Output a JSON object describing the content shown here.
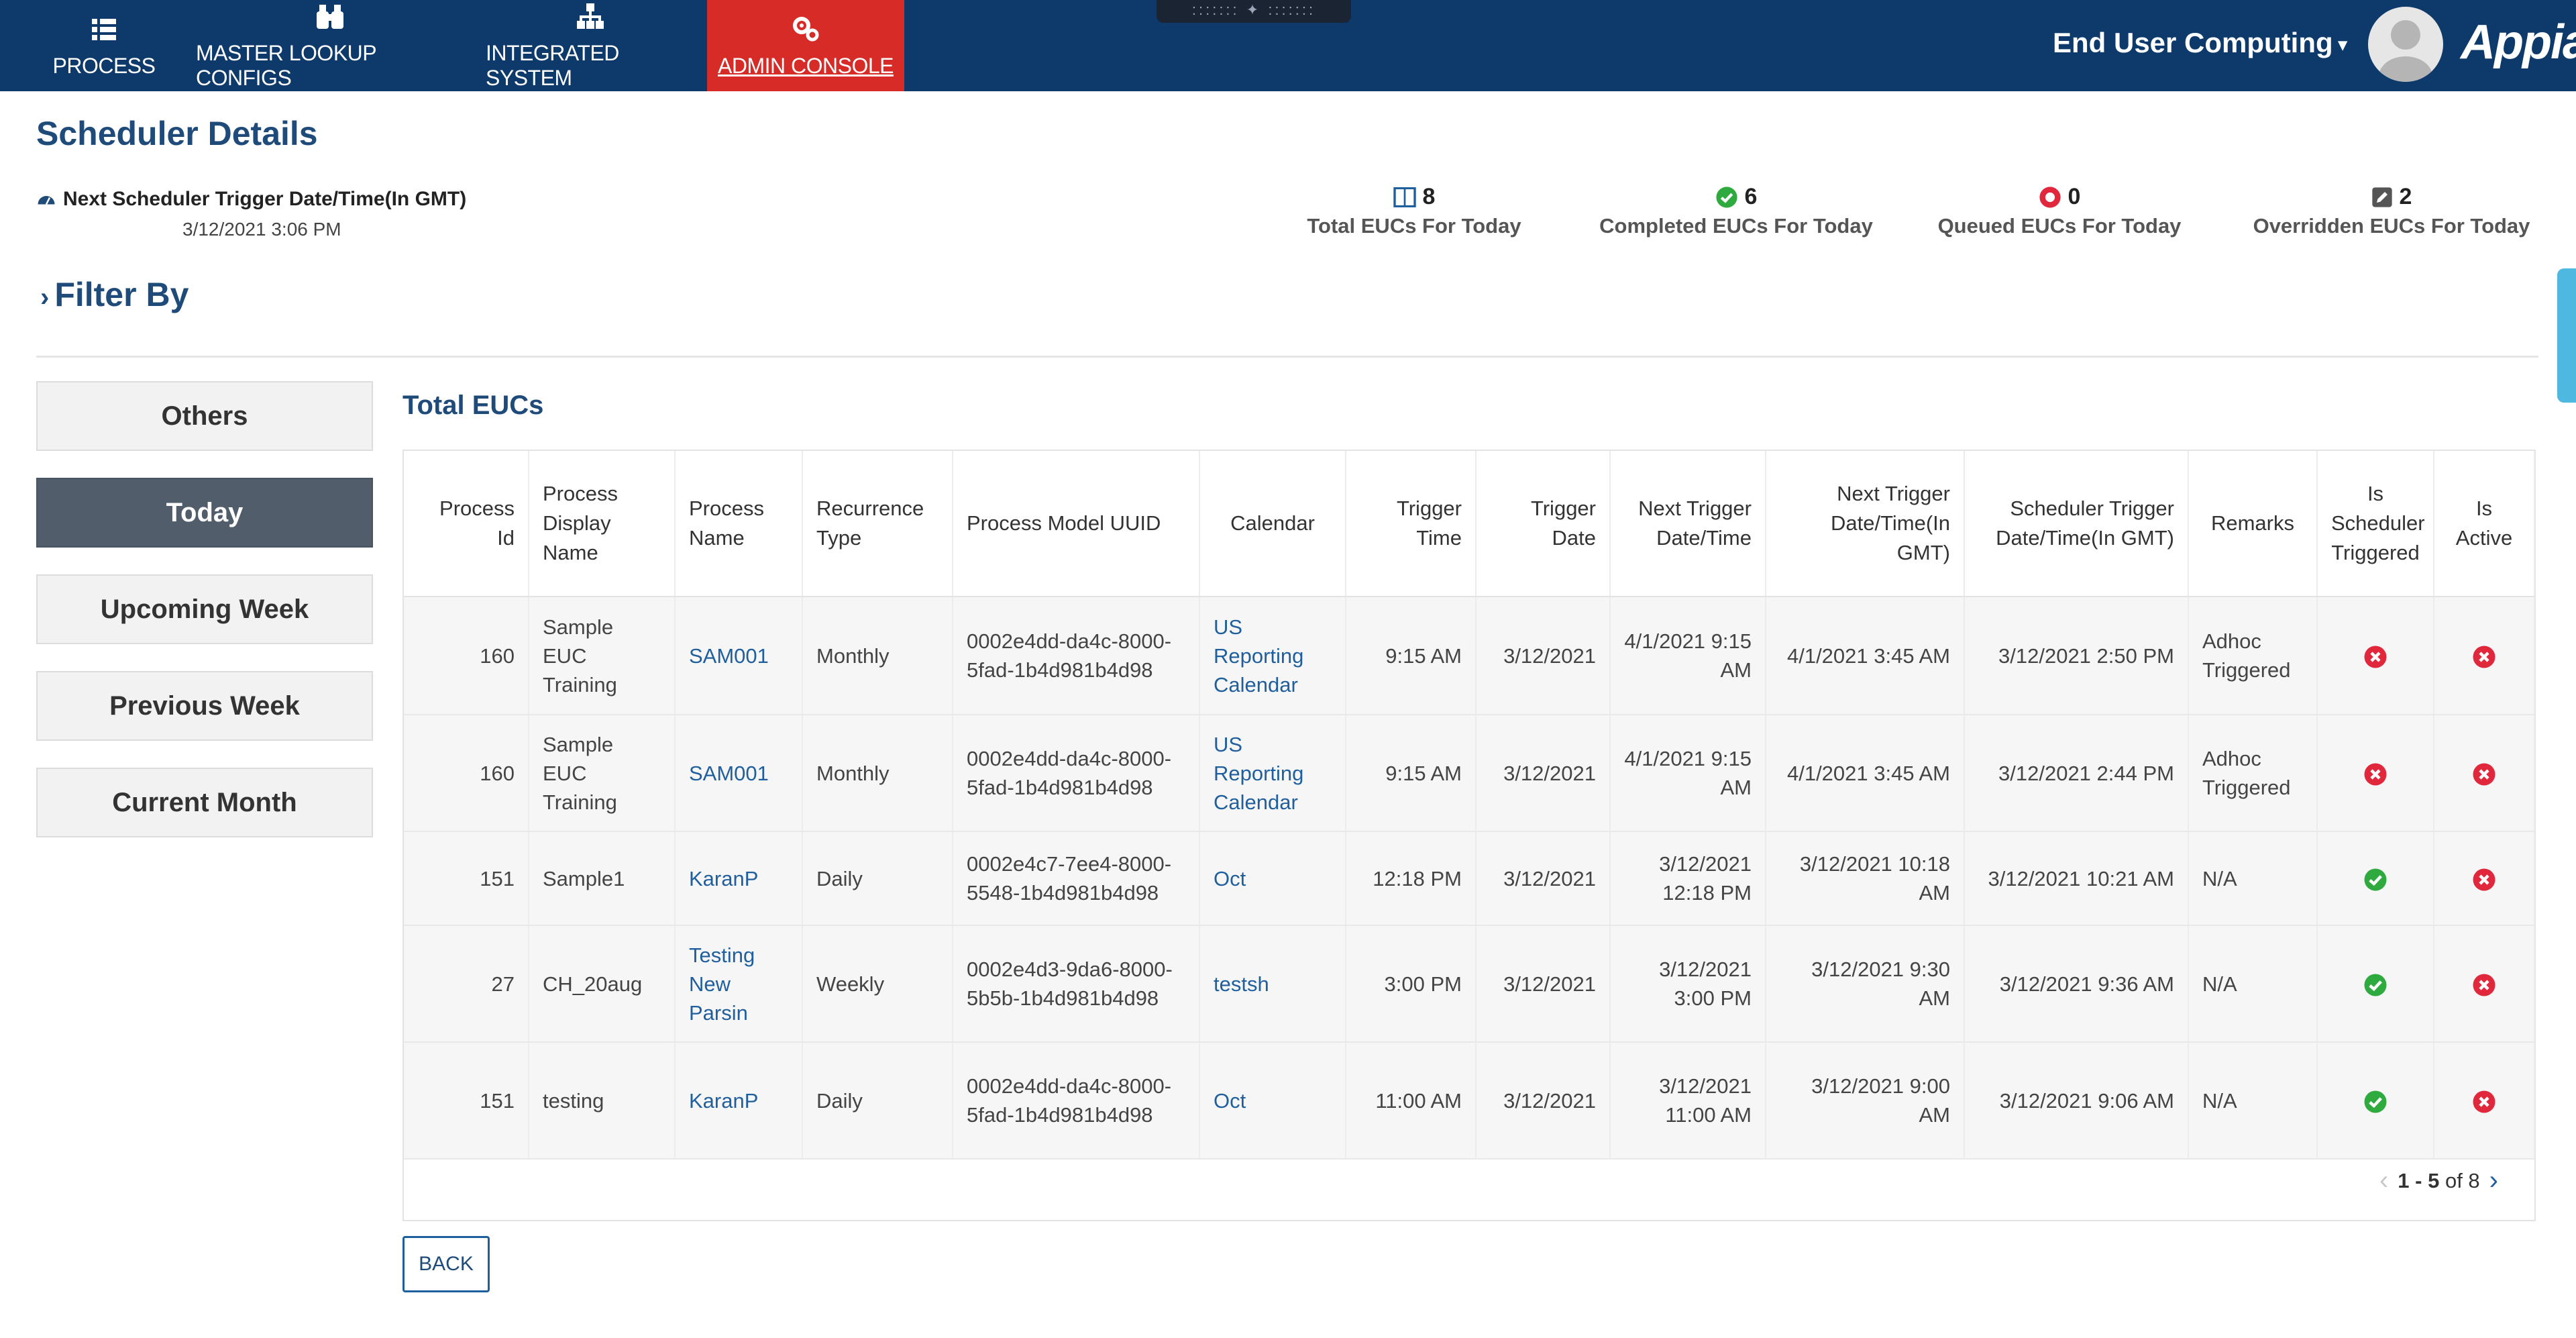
{
  "nav": {
    "tabs": [
      {
        "label": "PROCESS",
        "icon": "list-icon"
      },
      {
        "label": "MASTER LOOKUP CONFIGS",
        "icon": "binoculars-icon"
      },
      {
        "label": "INTEGRATED SYSTEM",
        "icon": "hierarchy-icon"
      },
      {
        "label": "ADMIN CONSOLE",
        "icon": "gears-icon",
        "active": true
      }
    ],
    "user_menu": "End User Computing",
    "logo": "Appian",
    "colors": {
      "bar": "#0d3a6b",
      "active_tab": "#d62b27"
    }
  },
  "page": {
    "title": "Scheduler Details",
    "next_trigger_label": "Next Scheduler Trigger Date/Time(In GMT)",
    "next_trigger_value": "3/12/2021 3:06 PM",
    "filter_label": "Filter By"
  },
  "stats": [
    {
      "count": "8",
      "label": "Total EUCs For Today",
      "icon": "grid-icon",
      "color": "#1f5f9e"
    },
    {
      "count": "6",
      "label": "Completed EUCs For Today",
      "icon": "check-circle-icon",
      "color": "#2eaa3f"
    },
    {
      "count": "0",
      "label": "Queued EUCs For Today",
      "icon": "x-circle-icon",
      "color": "#e0273c"
    },
    {
      "count": "2",
      "label": "Overridden EUCs For Today",
      "icon": "edit-icon",
      "color": "#555555"
    }
  ],
  "filters": [
    "Others",
    "Today",
    "Upcoming Week",
    "Previous Week",
    "Current Month"
  ],
  "active_filter": "Today",
  "grid": {
    "title": "Total EUCs",
    "headers": [
      "Process Id",
      "Process Display Name",
      "Process Name",
      "Recurrence Type",
      "Process Model UUID",
      "Calendar",
      "Trigger Time",
      "Trigger Date",
      "Next Trigger Date/Time",
      "Next Trigger Date/Time(In GMT)",
      "Scheduler Trigger Date/Time(In GMT)",
      "Remarks",
      "Is Scheduler Triggered",
      "Is Active"
    ],
    "rows": [
      [
        "160",
        "Sample EUC Training",
        "SAM001",
        "Monthly",
        "0002e4dd-da4c-8000-5fad-1b4d981b4d98",
        "US Reporting Calendar",
        "9:15 AM",
        "3/12/2021",
        "4/1/2021 9:15 AM",
        "4/1/2021 3:45 AM",
        "3/12/2021 2:50 PM",
        "Adhoc Triggered",
        "x",
        "x"
      ],
      [
        "160",
        "Sample EUC Training",
        "SAM001",
        "Monthly",
        "0002e4dd-da4c-8000-5fad-1b4d981b4d98",
        "US Reporting Calendar",
        "9:15 AM",
        "3/12/2021",
        "4/1/2021 9:15 AM",
        "4/1/2021 3:45 AM",
        "3/12/2021 2:44 PM",
        "Adhoc Triggered",
        "x",
        "x"
      ],
      [
        "151",
        "Sample1",
        "KaranP",
        "Daily",
        "0002e4c7-7ee4-8000-5548-1b4d981b4d98",
        "Oct",
        "12:18 PM",
        "3/12/2021",
        "3/12/2021 12:18 PM",
        "3/12/2021 10:18 AM",
        "3/12/2021 10:21 AM",
        "N/A",
        "check",
        "x"
      ],
      [
        "27",
        "CH_20aug",
        "Testing New Parsin",
        "Weekly",
        "0002e4d3-9da6-8000-5b5b-1b4d981b4d98",
        "testsh",
        "3:00 PM",
        "3/12/2021",
        "3/12/2021 3:00 PM",
        "3/12/2021 9:30 AM",
        "3/12/2021 9:36 AM",
        "N/A",
        "check",
        "x"
      ],
      [
        "151",
        "testing",
        "KaranP",
        "Daily",
        "0002e4dd-da4c-8000-5fad-1b4d981b4d98",
        "Oct",
        "11:00 AM",
        "3/12/2021",
        "3/12/2021 11:00 AM",
        "3/12/2021 9:00 AM",
        "3/12/2021 9:06 AM",
        "N/A",
        "check",
        "x"
      ]
    ],
    "pager": {
      "range": "1 - 5",
      "of_label": "of 8"
    }
  },
  "back_label": "BACK"
}
